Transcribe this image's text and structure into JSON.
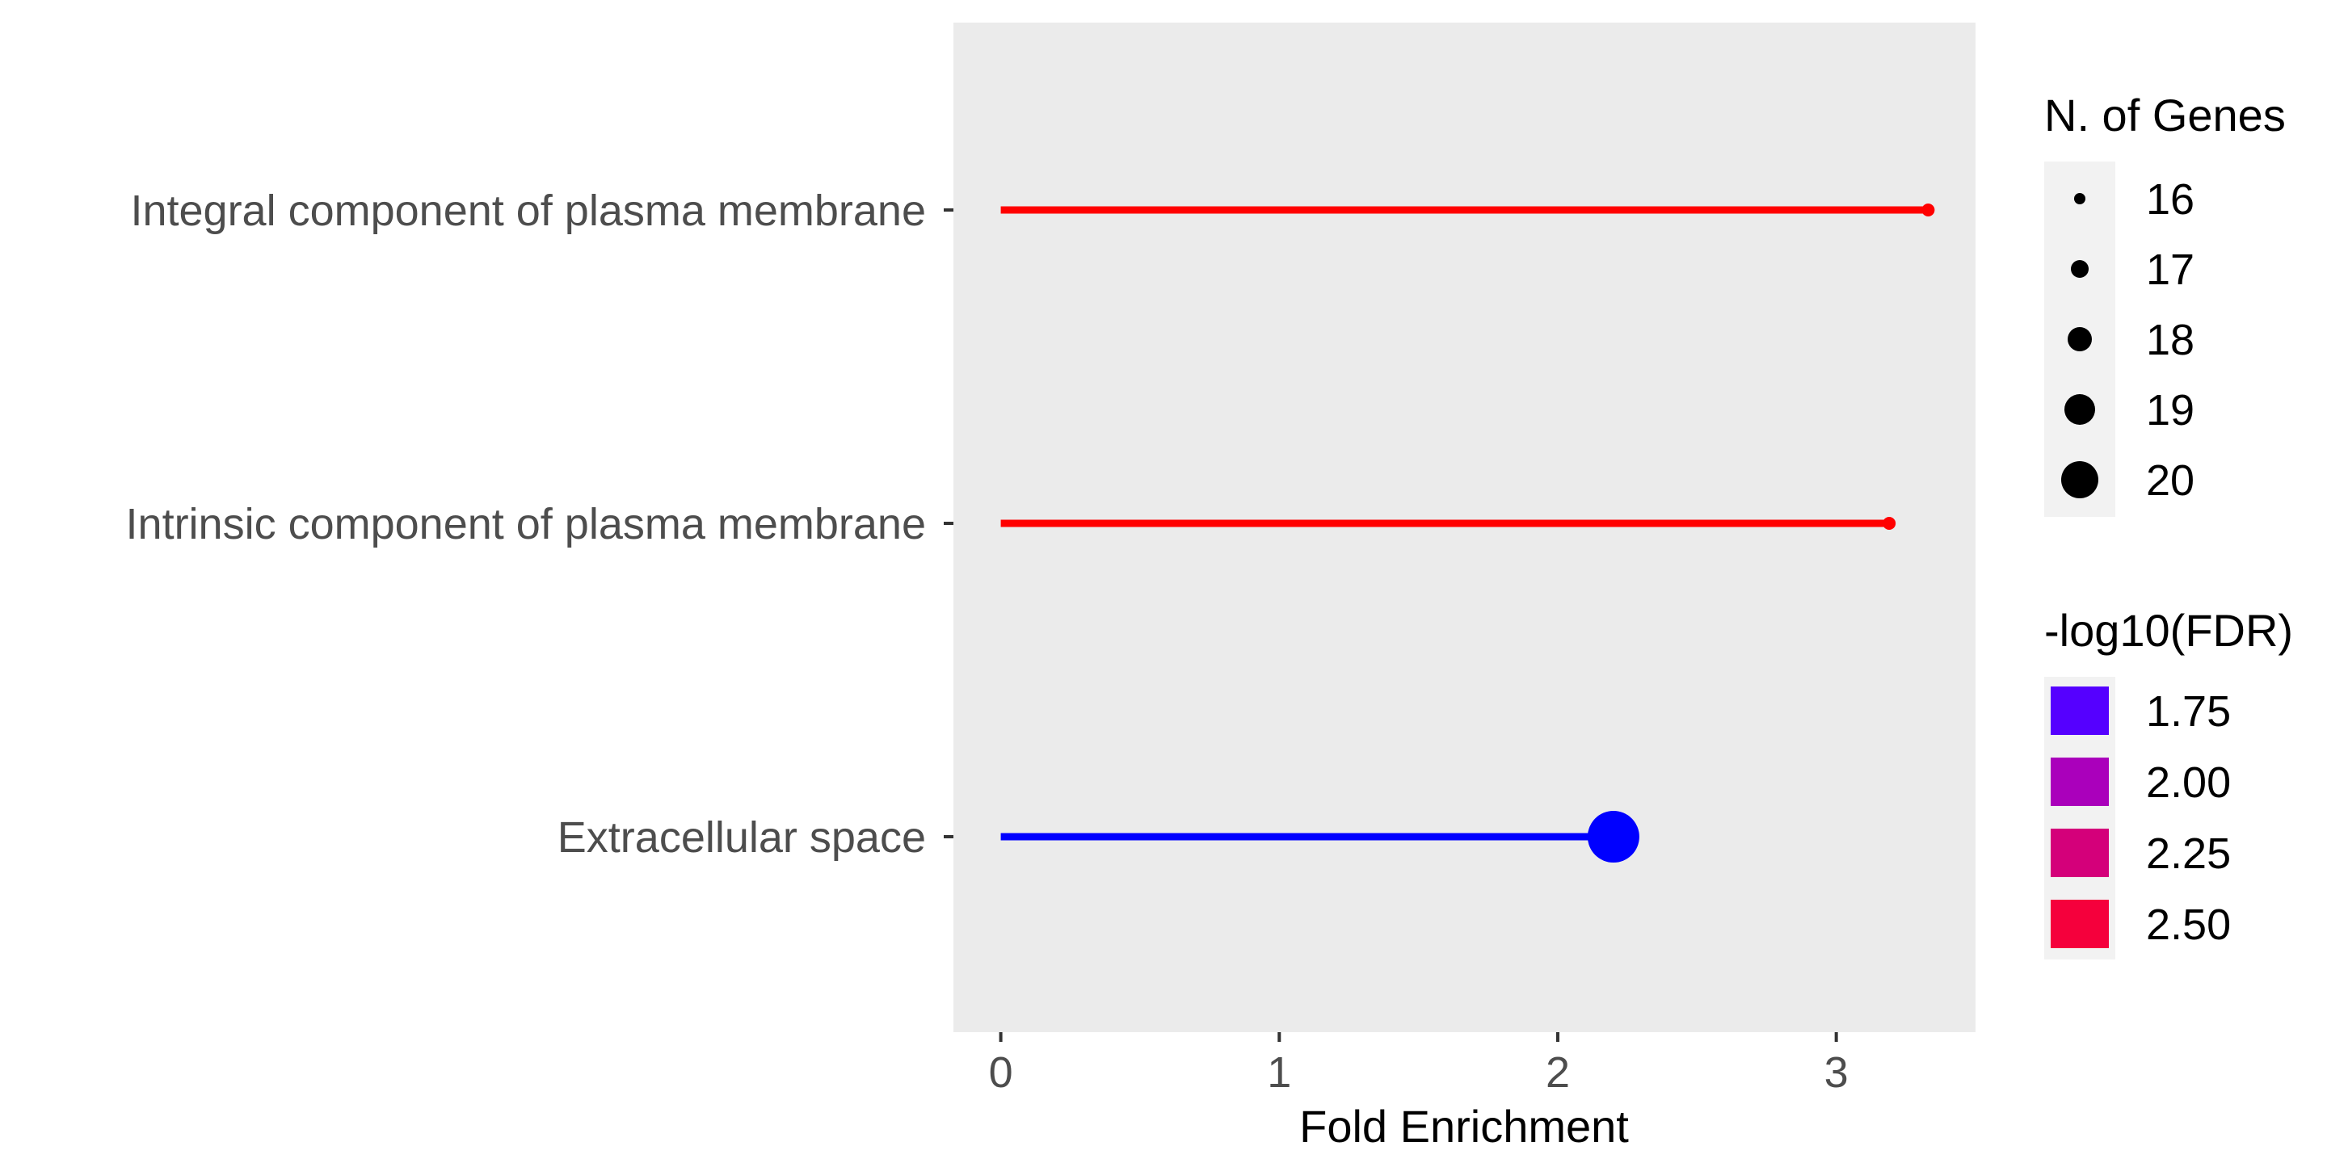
{
  "chart_data": {
    "type": "lollipop",
    "title": "",
    "xlabel": "Fold Enrichment",
    "ylabel": "",
    "xlim": [
      -0.17,
      3.5
    ],
    "xticks": [
      0,
      1,
      2,
      3
    ],
    "xtick_labels": [
      "0",
      "1",
      "2",
      "3"
    ],
    "grid": false,
    "panel_background": "#ebebeb",
    "categories": [
      "Integral component of plasma membrane",
      "Intrinsic component of plasma membrane",
      "Extracellular space"
    ],
    "points": [
      {
        "term": "Integral component of plasma membrane",
        "fold_enrichment": 3.33,
        "n_genes": 16,
        "neg_log10_fdr": 2.6,
        "color": "#ff0000"
      },
      {
        "term": "Intrinsic component of plasma membrane",
        "fold_enrichment": 3.19,
        "n_genes": 16,
        "neg_log10_fdr": 2.6,
        "color": "#ff0000"
      },
      {
        "term": "Extracellular space",
        "fold_enrichment": 2.2,
        "n_genes": 20,
        "neg_log10_fdr": 1.65,
        "color": "#0000ff"
      }
    ],
    "legends": {
      "size": {
        "title": "N. of Genes",
        "entries": [
          "16",
          "17",
          "18",
          "19",
          "20"
        ]
      },
      "color": {
        "title": "-log10(FDR)",
        "entries": [
          {
            "label": "1.75",
            "color": "#5500ff"
          },
          {
            "label": "2.00",
            "color": "#aa00bb"
          },
          {
            "label": "2.25",
            "color": "#d4007a"
          },
          {
            "label": "2.50",
            "color": "#f5003c"
          }
        ]
      },
      "placement": "right"
    }
  }
}
